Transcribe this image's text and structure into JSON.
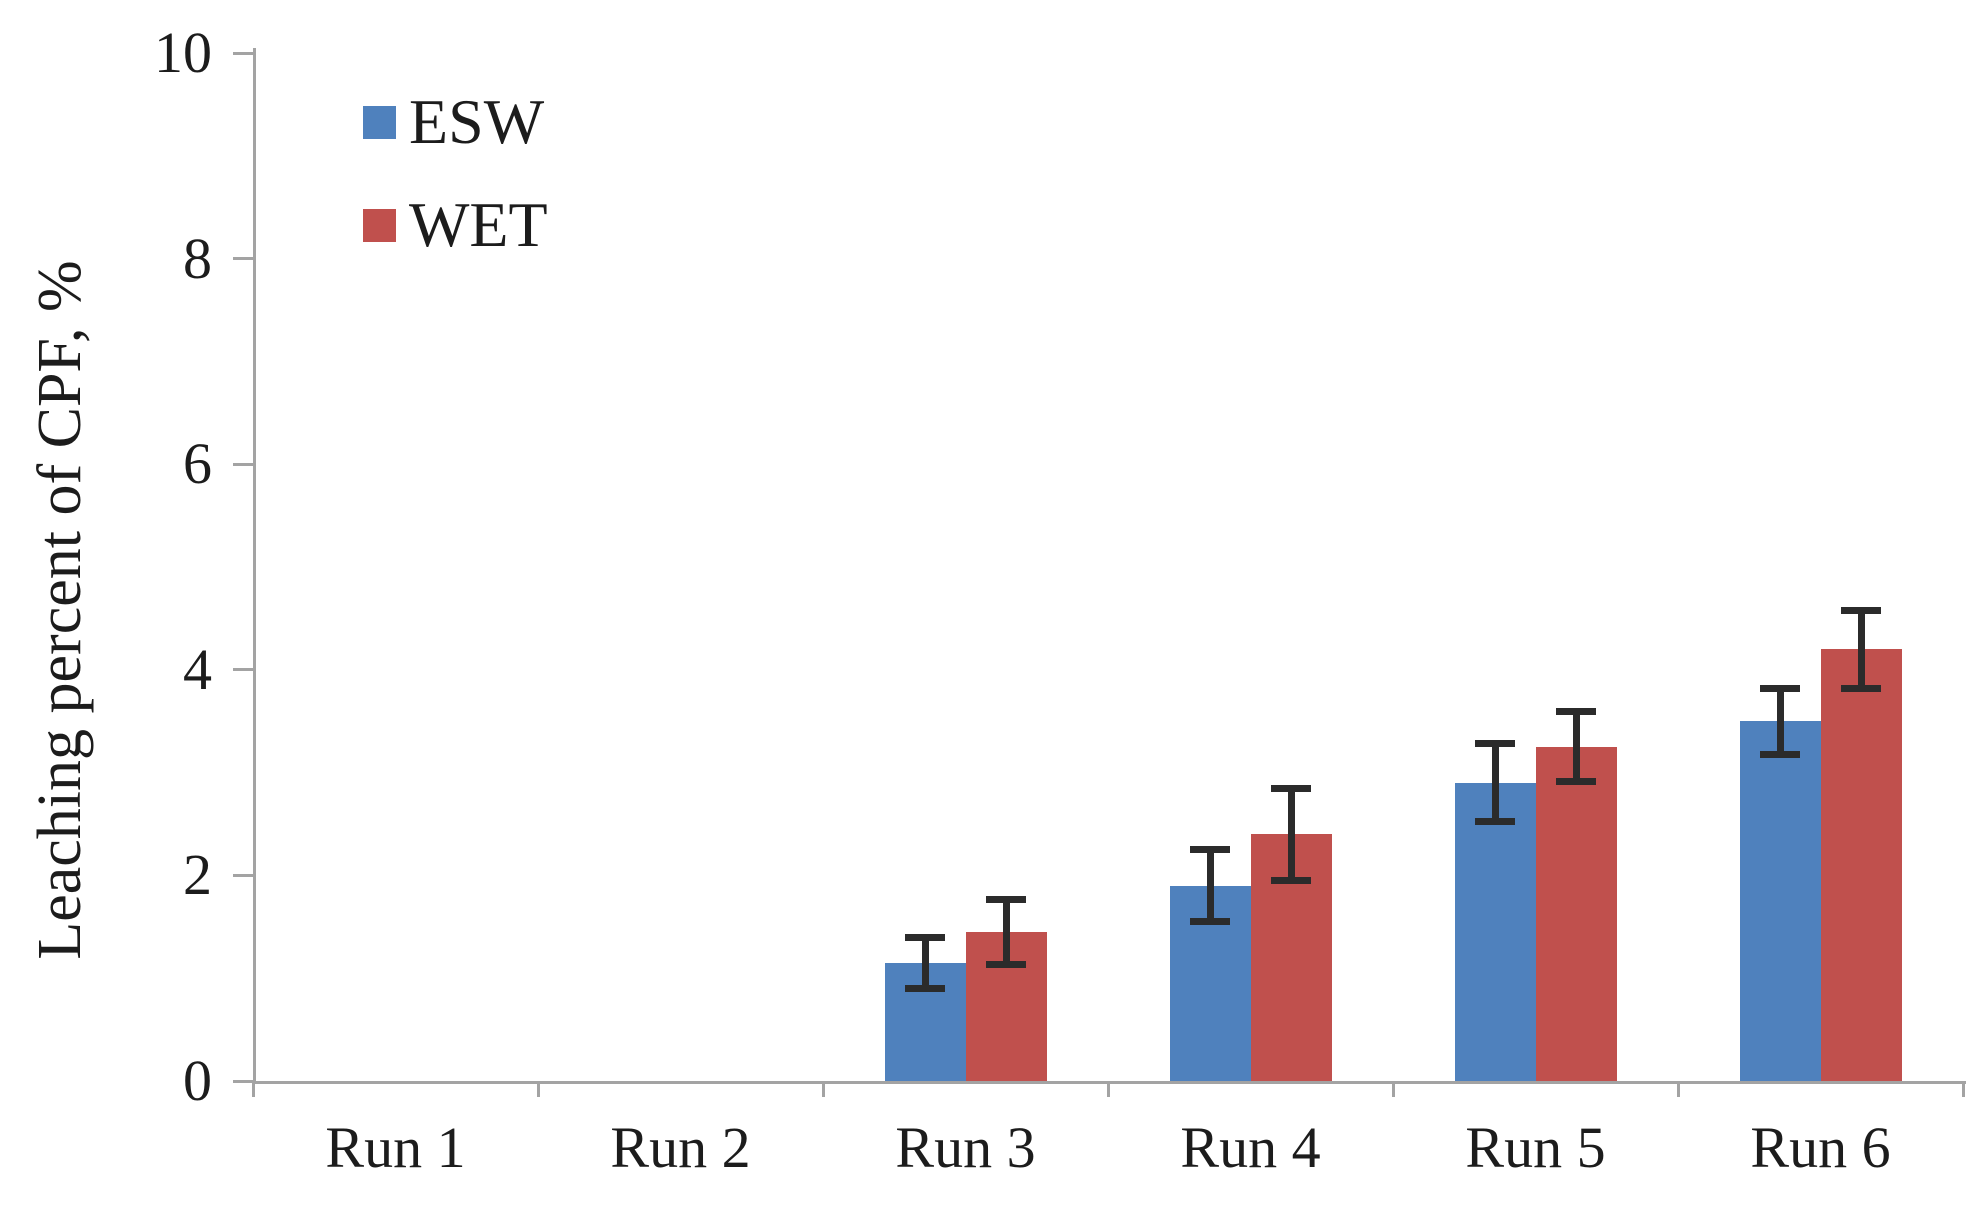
{
  "figure": {
    "background": "#ffffff"
  },
  "chart_data": {
    "type": "bar",
    "title": "",
    "xlabel": "",
    "ylabel": "Leaching percent of CPF, %",
    "categories": [
      "Run 1",
      "Run 2",
      "Run 3",
      "Run 4",
      "Run 5",
      "Run 6"
    ],
    "series": [
      {
        "name": "ESW",
        "color": "#4F81BD",
        "values": [
          0,
          0,
          1.15,
          1.9,
          2.9,
          3.5
        ],
        "errors": [
          0,
          0,
          0.25,
          0.35,
          0.38,
          0.32
        ]
      },
      {
        "name": "WET",
        "color": "#C0504D",
        "values": [
          0,
          0,
          1.45,
          2.4,
          3.25,
          4.2
        ],
        "errors": [
          0,
          0,
          0.32,
          0.45,
          0.34,
          0.38
        ]
      }
    ],
    "ylim": [
      0,
      10
    ],
    "yticks": [
      0,
      2,
      4,
      6,
      8,
      10
    ],
    "grid": false,
    "legend_position": "top-left-inside",
    "error_bars": true,
    "axis_color": "#a3a3a3",
    "error_bar_color": "#2b2b2b",
    "text_color": "#1c1c1c"
  }
}
